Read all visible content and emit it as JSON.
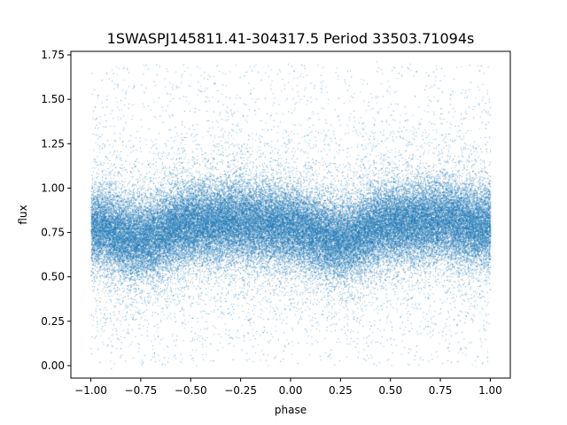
{
  "chart_data": {
    "type": "scatter",
    "title": "1SWASPJ145811.41-304317.5 Period 33503.71094s",
    "xlabel": "phase",
    "ylabel": "flux",
    "xlim": [
      -1.1,
      1.1
    ],
    "ylim": [
      -0.07,
      1.77
    ],
    "xticks": [
      -1.0,
      -0.75,
      -0.5,
      -0.25,
      0.0,
      0.25,
      0.5,
      0.75,
      1.0
    ],
    "xtick_labels": [
      "−1.00",
      "−0.75",
      "−0.50",
      "−0.25",
      "0.00",
      "0.25",
      "0.50",
      "0.75",
      "1.00"
    ],
    "yticks": [
      0.0,
      0.25,
      0.5,
      0.75,
      1.0,
      1.25,
      1.5,
      1.75
    ],
    "ytick_labels": [
      "0.00",
      "0.25",
      "0.50",
      "0.75",
      "1.00",
      "1.25",
      "1.50",
      "1.75"
    ],
    "grid": false,
    "series": [
      {
        "color": "#1f77b4",
        "x_range": [
          -1.0,
          1.0
        ],
        "mean_flux_profile": {
          "phase": [
            -1.0,
            -0.75,
            -0.5,
            -0.25,
            0.0,
            0.25,
            0.5,
            0.75,
            1.0
          ],
          "flux": [
            0.78,
            0.71,
            0.8,
            0.81,
            0.78,
            0.71,
            0.8,
            0.82,
            0.78
          ]
        },
        "approx_points": 60000
      }
    ]
  }
}
